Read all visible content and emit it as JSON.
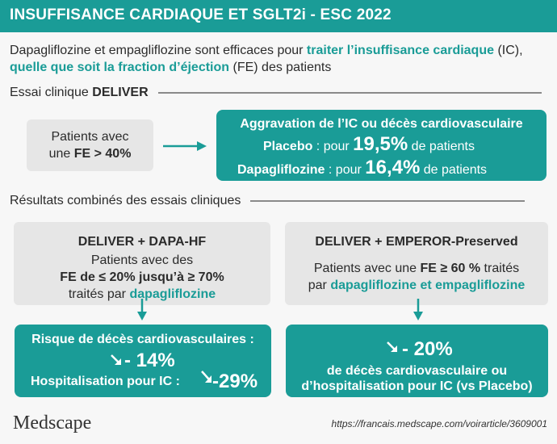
{
  "header": {
    "title": "INSUFFISANCE CARDIAQUE ET SGLT2i - ESC 2022"
  },
  "intro": {
    "p1": "Dapagliflozine et empagliflozine sont efficaces pour ",
    "t1": "traiter l’insuffisance cardiaque",
    "p2": " (IC), ",
    "t2": "quelle que soit la fraction d’éjection",
    "p3": " (FE) des patients"
  },
  "deliver_section": {
    "heading_prefix": "Essai clinique ",
    "heading_bold": "DELIVER",
    "patients_line1": "Patients avec",
    "patients_line2_pre": "une ",
    "patients_line2_bold": "FE > 40%",
    "result_title": "Aggravation de l’IC ou décès cardiovasculaire",
    "placebo_label": "Placebo",
    "placebo_mid": " : pour ",
    "placebo_value": "19,5%",
    "placebo_suffix": " de patients",
    "dapa_label": "Dapagliflozine",
    "dapa_mid": " : pour ",
    "dapa_value": "16,4%",
    "dapa_suffix": " de patients"
  },
  "combined_section": {
    "heading": "Résultats combinés des essais cliniques",
    "left": {
      "title": "DELIVER + DAPA-HF",
      "line1": "Patients avec des",
      "line2": "FE de ≤ 20% jusqu’à  ≥ 70%",
      "line3_pre": "traités par ",
      "line3_teal": "dapagliflozine",
      "result_line1": "Risque de décès cardiovasculaires :",
      "result_value1": "- 14%",
      "result_line2": "Hospitalisation pour IC :",
      "result_value2": "-29%"
    },
    "right": {
      "title": "DELIVER + EMPEROR-Preserved",
      "line1_pre": "Patients avec une ",
      "line1_bold": "FE ≥ 60 %",
      "line1_post": " traités",
      "line2_pre": "par ",
      "line2_teal": "dapagliflozine et empagliflozine",
      "result_value": "- 20%",
      "result_line1": "de décès cardiovasculaire ou",
      "result_line2": "d’hospitalisation pour IC (vs Placebo)"
    }
  },
  "footer": {
    "logo": "Medscape",
    "url": "https://francais.medscape.com/voirarticle/3609001"
  },
  "colors": {
    "teal": "#1a9c97",
    "grey_box": "#e6e6e6",
    "background": "#f7f7f7"
  }
}
